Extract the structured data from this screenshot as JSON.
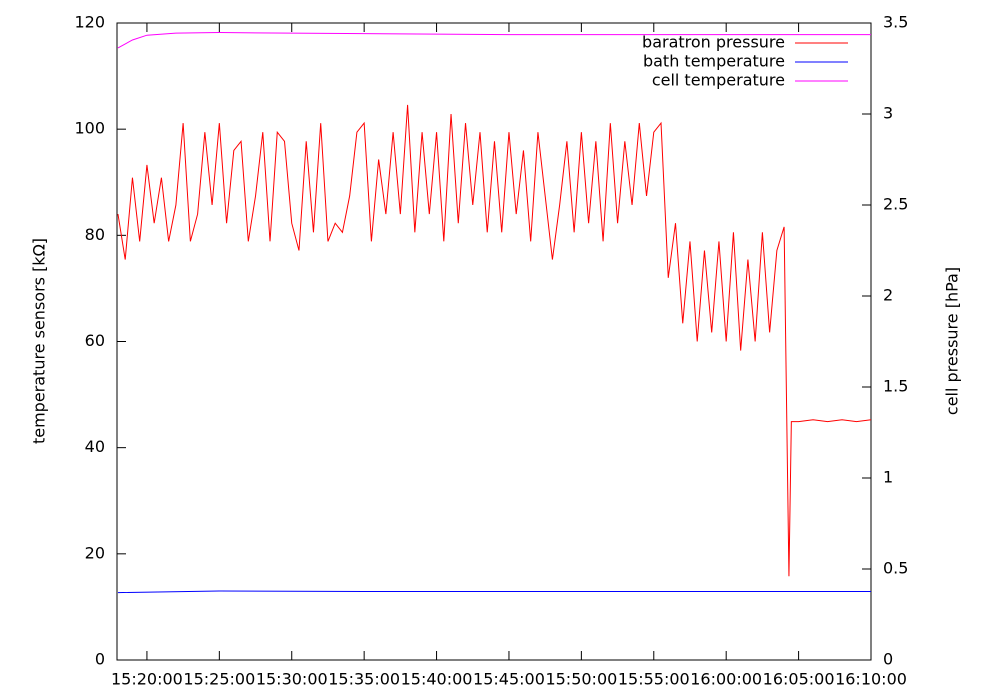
{
  "chart_data": {
    "type": "line",
    "ylabel": "temperature sensors [kΩ]",
    "y2label": "cell pressure [hPa]",
    "xlim": [
      "15:17:56",
      "16:10:00"
    ],
    "xticks": [
      "15:20:00",
      "15:25:00",
      "15:30:00",
      "15:35:00",
      "15:40:00",
      "15:45:00",
      "15:50:00",
      "15:55:00",
      "16:00:00",
      "16:05:00",
      "16:10:00"
    ],
    "ylim": [
      0,
      120
    ],
    "yticks": [
      0,
      20,
      40,
      60,
      80,
      100,
      120
    ],
    "y2lim": [
      0,
      3.5
    ],
    "y2ticks": [
      0,
      0.5,
      1,
      1.5,
      2,
      2.5,
      3,
      3.5
    ],
    "legend": "top-right",
    "series": [
      {
        "name": "baratron pressure",
        "color": "#ff0000",
        "axis": "y2",
        "x": [
          "15:18:00",
          "15:18:30",
          "15:19:00",
          "15:19:30",
          "15:20:00",
          "15:20:30",
          "15:21:00",
          "15:21:30",
          "15:22:00",
          "15:22:30",
          "15:23:00",
          "15:23:30",
          "15:24:00",
          "15:24:30",
          "15:25:00",
          "15:25:30",
          "15:26:00",
          "15:26:30",
          "15:27:00",
          "15:27:30",
          "15:28:00",
          "15:28:30",
          "15:29:00",
          "15:29:30",
          "15:30:00",
          "15:30:30",
          "15:31:00",
          "15:31:30",
          "15:32:00",
          "15:32:30",
          "15:33:00",
          "15:33:30",
          "15:34:00",
          "15:34:30",
          "15:35:00",
          "15:35:30",
          "15:36:00",
          "15:36:30",
          "15:37:00",
          "15:37:30",
          "15:38:00",
          "15:38:30",
          "15:39:00",
          "15:39:30",
          "15:40:00",
          "15:40:30",
          "15:41:00",
          "15:41:30",
          "15:42:00",
          "15:42:30",
          "15:43:00",
          "15:43:30",
          "15:44:00",
          "15:44:30",
          "15:45:00",
          "15:45:30",
          "15:46:00",
          "15:46:30",
          "15:47:00",
          "15:47:30",
          "15:48:00",
          "15:48:30",
          "15:49:00",
          "15:49:30",
          "15:50:00",
          "15:50:30",
          "15:51:00",
          "15:51:30",
          "15:52:00",
          "15:52:30",
          "15:53:00",
          "15:53:30",
          "15:54:00",
          "15:54:30",
          "15:55:00",
          "15:55:30",
          "15:56:00",
          "15:56:30",
          "15:57:00",
          "15:57:30",
          "15:58:00",
          "15:58:30",
          "15:59:00",
          "15:59:30",
          "16:00:00",
          "16:00:30",
          "16:01:00",
          "16:01:30",
          "16:02:00",
          "16:02:30",
          "16:03:00",
          "16:03:30",
          "16:04:00",
          "16:04:20",
          "16:04:30",
          "16:05:00",
          "16:06:00",
          "16:07:00",
          "16:08:00",
          "16:09:00",
          "16:10:00"
        ],
        "values": [
          2.45,
          2.2,
          2.65,
          2.3,
          2.72,
          2.4,
          2.65,
          2.3,
          2.5,
          2.95,
          2.3,
          2.45,
          2.9,
          2.5,
          2.95,
          2.4,
          2.8,
          2.85,
          2.3,
          2.55,
          2.9,
          2.3,
          2.9,
          2.85,
          2.4,
          2.25,
          2.85,
          2.35,
          2.95,
          2.3,
          2.4,
          2.35,
          2.55,
          2.9,
          2.95,
          2.3,
          2.75,
          2.45,
          2.9,
          2.45,
          3.05,
          2.35,
          2.9,
          2.45,
          2.9,
          2.3,
          3.0,
          2.4,
          2.95,
          2.5,
          2.9,
          2.35,
          2.85,
          2.35,
          2.9,
          2.45,
          2.8,
          2.3,
          2.9,
          2.55,
          2.2,
          2.5,
          2.85,
          2.35,
          2.9,
          2.4,
          2.85,
          2.3,
          2.95,
          2.4,
          2.85,
          2.5,
          2.95,
          2.55,
          2.9,
          2.95,
          2.1,
          2.4,
          1.85,
          2.3,
          1.75,
          2.25,
          1.8,
          2.3,
          1.75,
          2.35,
          1.7,
          2.2,
          1.75,
          2.35,
          1.8,
          2.25,
          2.38,
          0.46,
          1.31,
          1.31,
          1.32,
          1.31,
          1.32,
          1.31,
          1.32
        ]
      },
      {
        "name": "bath temperature",
        "color": "#0000ff",
        "x": [
          "15:18:00",
          "15:25:00",
          "15:35:00",
          "16:10:00"
        ],
        "values": [
          12.7,
          13.0,
          12.9,
          12.9
        ]
      },
      {
        "name": "cell temperature",
        "color": "#ff00ff",
        "x": [
          "15:18:00",
          "15:19:00",
          "15:20:00",
          "15:22:00",
          "15:25:00",
          "15:35:00",
          "15:45:00",
          "16:10:00"
        ],
        "values": [
          115.3,
          116.8,
          117.7,
          118.1,
          118.2,
          118.0,
          117.8,
          117.8
        ]
      }
    ]
  }
}
